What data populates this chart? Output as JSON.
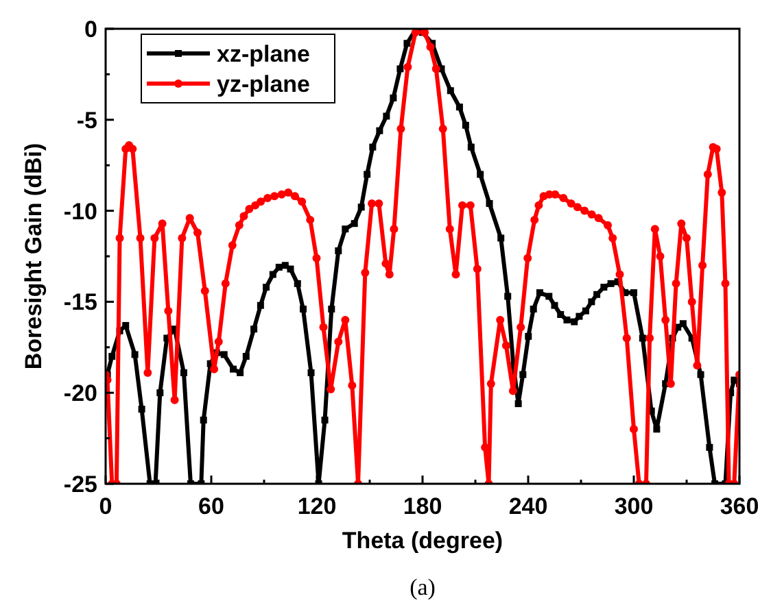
{
  "chart_data": {
    "type": "line",
    "xlabel": "Theta (degree)",
    "ylabel": "Boresight Gain (dBi)",
    "annotations": [
      "(a)"
    ],
    "xlim": [
      0,
      360
    ],
    "ylim": [
      -25,
      0
    ],
    "xticks": [
      0,
      {
        "value": 30,
        "label": null
      },
      60,
      {
        "value": 90,
        "label": null
      },
      120,
      {
        "value": 150,
        "label": null
      },
      180,
      {
        "value": 210,
        "label": null
      },
      240,
      {
        "value": 270,
        "label": null
      },
      300,
      {
        "value": 330,
        "label": null
      },
      360
    ],
    "yticks": [
      -25,
      {
        "value": -22.5,
        "label": null
      },
      -20,
      {
        "value": -17.5,
        "label": null
      },
      -15,
      {
        "value": -12.5,
        "label": null
      },
      -10,
      {
        "value": -7.5,
        "label": null
      },
      -5,
      {
        "value": -2.5,
        "label": null
      },
      0
    ],
    "grid": false,
    "legend": "top left",
    "line_style": "solid",
    "series": [
      {
        "name": "xz-plane",
        "color": "#000000",
        "marker": "square",
        "x": [
          0,
          1,
          3.6,
          8,
          11.4,
          16.6,
          20.5,
          25.2,
          28.3,
          30.9,
          34.8,
          39.2,
          44.4,
          48.3,
          54.3,
          55.6,
          59.5,
          63,
          67.3,
          72.5,
          76.4,
          79.8,
          84.2,
          88,
          91.2,
          95,
          98.5,
          102,
          105,
          109,
          112.2,
          116.7,
          121,
          124.5,
          128.3,
          132.2,
          136.1,
          141.3,
          145.2,
          148.5,
          151.7,
          155.6,
          159.5,
          163.4,
          167.3,
          171.2,
          176.4,
          180,
          185.5,
          190.7,
          195.9,
          201,
          204.5,
          207.6,
          212.8,
          218,
          224.5,
          228.4,
          231.6,
          234.4,
          237,
          240.1,
          243,
          246.6,
          251.8,
          255,
          258.4,
          262,
          266.2,
          269,
          272.7,
          276,
          279,
          283,
          287,
          290.9,
          295,
          300,
          305,
          310,
          313,
          318,
          322,
          325,
          328,
          333,
          338,
          343,
          346,
          352,
          355,
          357,
          360
        ],
        "values": [
          -19.5,
          -19,
          -18,
          -16.6,
          -16.3,
          -17.9,
          -20.9,
          -25,
          -25,
          -20,
          -17,
          -16.5,
          -18.9,
          -25,
          -25,
          -21.5,
          -18.4,
          -17.8,
          -17.9,
          -18.7,
          -18.9,
          -18,
          -16.5,
          -15.2,
          -14.2,
          -13.5,
          -13.1,
          -13,
          -13.2,
          -14,
          -15.4,
          -18.9,
          -25,
          -21.5,
          -15.4,
          -12.2,
          -11,
          -10.7,
          -9.8,
          -8,
          -6.5,
          -5.6,
          -4.8,
          -3.8,
          -2.2,
          -0.8,
          0,
          -0.2,
          -0.8,
          -2.2,
          -3.4,
          -4.3,
          -5.3,
          -6.5,
          -8,
          -9.6,
          -11.5,
          -14.7,
          -18.5,
          -20.6,
          -19,
          -16.9,
          -15.4,
          -14.5,
          -14.7,
          -15.2,
          -15.7,
          -16,
          -16.1,
          -15.8,
          -15.5,
          -15,
          -14.6,
          -14.2,
          -14,
          -13.9,
          -14.5,
          -14.5,
          -17,
          -21,
          -22,
          -19.5,
          -17,
          -16.4,
          -16.2,
          -17,
          -19,
          -23,
          -25,
          -25,
          -20,
          -19.3,
          -19.5
        ]
      },
      {
        "name": "yz-plane",
        "color": "#ff0000",
        "marker": "circle",
        "x": [
          0,
          1,
          3.6,
          6.2,
          8,
          11.4,
          13.3,
          15.3,
          19.7,
          23.9,
          27.8,
          32.2,
          35.6,
          39.2,
          43.4,
          47.8,
          52.2,
          56.4,
          61.6,
          64.2,
          68.1,
          72,
          75.9,
          78.5,
          81.6,
          85,
          88.1,
          92,
          95.9,
          100,
          103.7,
          107.5,
          111.5,
          116.2,
          119.8,
          123.7,
          127.9,
          132.2,
          136.1,
          140,
          143.4,
          147.4,
          151.2,
          155.2,
          159.1,
          161.2,
          163.8,
          167.7,
          171.6,
          176,
          181.2,
          184.5,
          187.7,
          191.6,
          195.5,
          198.9,
          202.6,
          207.2,
          211.1,
          215.5,
          217.6,
          218.9,
          224.1,
          227.5,
          231.4,
          235.8,
          239.7,
          243.6,
          246,
          248.8,
          252,
          255.3,
          260,
          264.4,
          268,
          272,
          276.1,
          280,
          285.2,
          288,
          292,
          296,
          300,
          303,
          307,
          309,
          312,
          315,
          318,
          321,
          324,
          327,
          330,
          333,
          336,
          339,
          342,
          345,
          347,
          350,
          352,
          354,
          357,
          360
        ],
        "values": [
          -19,
          -19.3,
          -25,
          -25,
          -11.5,
          -6.6,
          -6.4,
          -6.6,
          -11.5,
          -18.9,
          -11.5,
          -10.7,
          -15.5,
          -20.4,
          -11.5,
          -10.4,
          -11.2,
          -14.4,
          -18.7,
          -17.2,
          -14,
          -11.9,
          -10.8,
          -10.3,
          -9.9,
          -9.7,
          -9.5,
          -9.3,
          -9.2,
          -9.1,
          -9,
          -9.2,
          -9.5,
          -10.5,
          -12.6,
          -16.4,
          -19.8,
          -17.2,
          -16,
          -19.6,
          -25,
          -13.4,
          -9.6,
          -9.6,
          -12.9,
          -13.5,
          -11,
          -5.5,
          -2.1,
          -0.2,
          -0.2,
          -1,
          -2.2,
          -5.5,
          -11,
          -13.5,
          -9.7,
          -9.7,
          -13.2,
          -23,
          -25,
          -19.5,
          -16,
          -17.4,
          -19.9,
          -16.4,
          -12.6,
          -10.5,
          -9.7,
          -9.2,
          -9.1,
          -9.1,
          -9.3,
          -9.6,
          -9.8,
          -10,
          -10.2,
          -10.4,
          -10.8,
          -11.5,
          -13.5,
          -17,
          -22,
          -25,
          -25,
          -17,
          -11,
          -12.5,
          -16,
          -19.5,
          -14,
          -10.7,
          -11.5,
          -15,
          -18.5,
          -13,
          -8,
          -6.5,
          -6.6,
          -9,
          -14,
          -25,
          -25,
          -19
        ]
      }
    ]
  }
}
